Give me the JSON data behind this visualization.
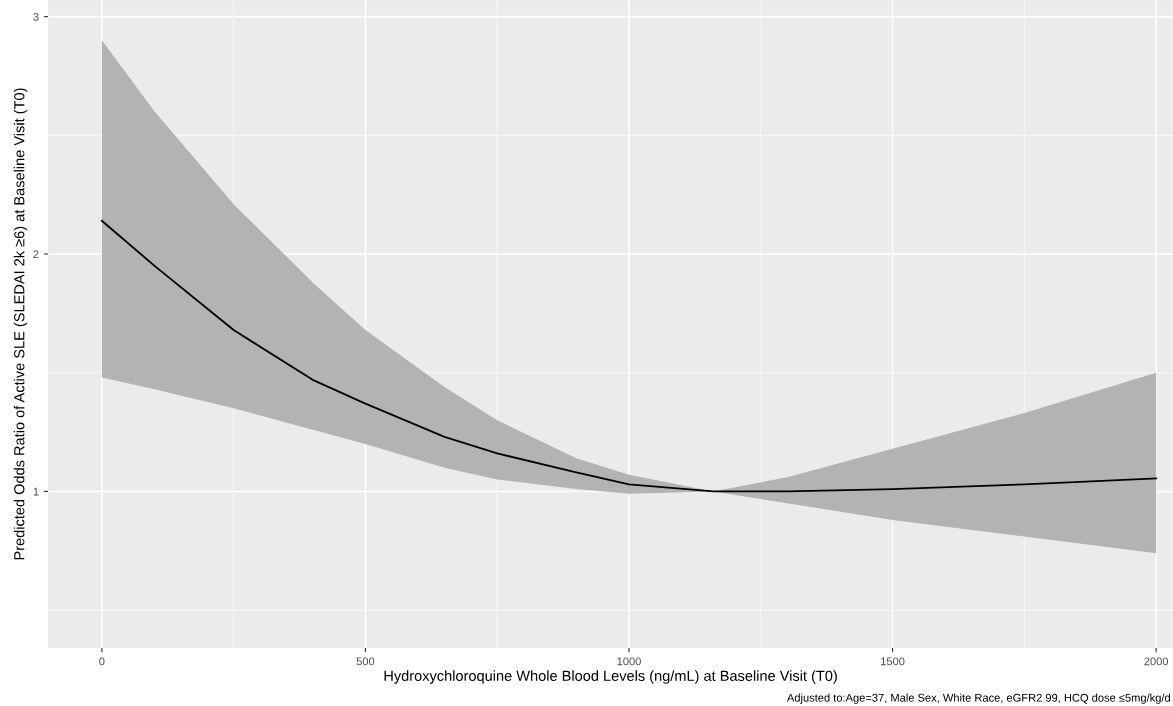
{
  "chart_data": {
    "type": "line",
    "xlabel": "Hydroxychloroquine Whole Blood Levels (ng/mL) at Baseline Visit (T0)",
    "ylabel": "Predicted Odds Ratio of Active SLE (SLEDAI 2k ≥6) at Baseline Visit (T0)",
    "annotations": [
      "Adjusted to:Age=37, Male Sex, White Race, eGFR2 99, HCQ dose ≤5mg/kg/d"
    ],
    "x": [
      0,
      100,
      250,
      400,
      500,
      650,
      750,
      900,
      1000,
      1160,
      1300,
      1500,
      1750,
      2000
    ],
    "series": [
      {
        "color": "#000000",
        "values": [
          2.14,
          1.95,
          1.68,
          1.47,
          1.37,
          1.23,
          1.16,
          1.08,
          1.03,
          1.0,
          1.0,
          1.01,
          1.03,
          1.055
        ],
        "upper": [
          2.9,
          2.6,
          2.21,
          1.88,
          1.68,
          1.44,
          1.3,
          1.14,
          1.07,
          1.0,
          1.06,
          1.18,
          1.33,
          1.5
        ],
        "lower": [
          1.48,
          1.43,
          1.35,
          1.26,
          1.2,
          1.1,
          1.05,
          1.01,
          0.99,
          1.0,
          0.95,
          0.88,
          0.81,
          0.74
        ]
      }
    ],
    "xlim": [
      -102,
      2032
    ],
    "ylim": [
      0.34,
      3.07
    ],
    "xticks": [
      0,
      500,
      1000,
      1500,
      2000
    ],
    "yticks": [
      1,
      2,
      3
    ],
    "grid": true
  }
}
